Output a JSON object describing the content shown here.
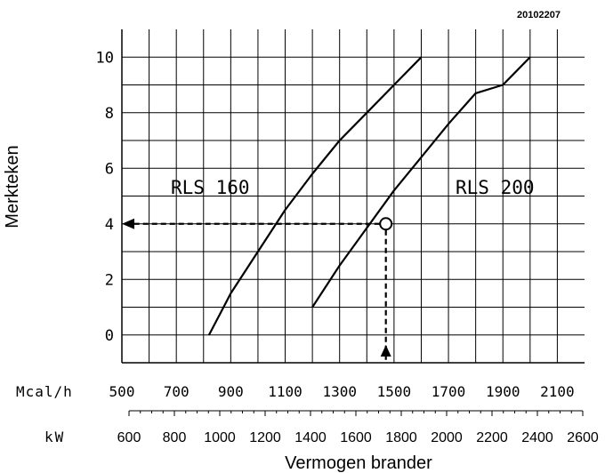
{
  "doc_id": "20102207",
  "chart_data": {
    "type": "line",
    "ylabel": "Merkteken",
    "xlabel": "Vermogen brander",
    "y_ticks": [
      "10",
      "8",
      "6",
      "4",
      "2",
      "0"
    ],
    "y_tick_values": [
      10,
      8,
      6,
      4,
      2,
      0
    ],
    "ylim": [
      -1,
      11
    ],
    "x_axis_mcal": {
      "unit_label": "Mcal/h",
      "ticks": [
        "500",
        "700",
        "900",
        "1100",
        "1300",
        "1500",
        "1700",
        "1900",
        "2100"
      ],
      "tick_values": [
        500,
        700,
        900,
        1100,
        1300,
        1500,
        1700,
        1900,
        2100
      ],
      "range": [
        500,
        2200
      ]
    },
    "x_axis_kw": {
      "unit_label": "kW",
      "ticks": [
        "600",
        "800",
        "1000",
        "1200",
        "1400",
        "1600",
        "1800",
        "2000",
        "2200",
        "2400",
        "2600"
      ],
      "tick_values": [
        600,
        800,
        1000,
        1200,
        1400,
        1600,
        1800,
        2000,
        2200,
        2400,
        2600
      ]
    },
    "series": [
      {
        "name": "RLS 160",
        "x": [
          820,
          900,
          1000,
          1100,
          1200,
          1300,
          1400,
          1500,
          1600
        ],
        "y": [
          0,
          1.5,
          3.0,
          4.5,
          5.8,
          7.0,
          8.0,
          9.0,
          10
        ]
      },
      {
        "name": "RLS 200",
        "x": [
          1200,
          1300,
          1400,
          1500,
          1600,
          1700,
          1800,
          1900,
          2000
        ],
        "y": [
          1,
          2.5,
          3.85,
          5.2,
          6.4,
          7.6,
          8.7,
          9.0,
          10
        ]
      }
    ],
    "annotation": {
      "x": 1470,
      "y": 4,
      "style": "dashed guide from x-axis up to curve, then left to y-axis"
    },
    "grid": true
  }
}
